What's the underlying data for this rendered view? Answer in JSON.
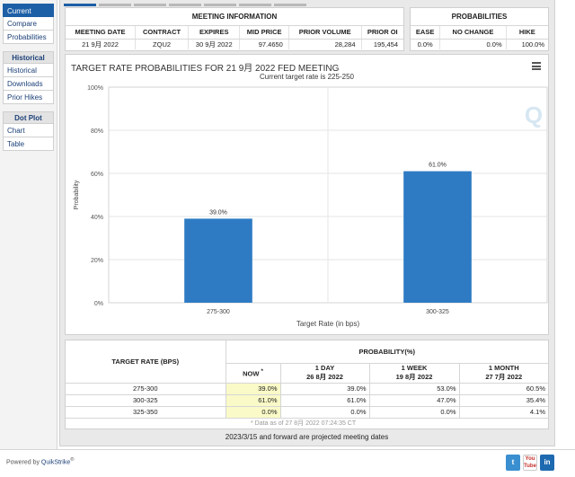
{
  "sidebar": {
    "items": [
      {
        "label": "Current",
        "active": true
      },
      {
        "label": "Compare"
      },
      {
        "label": "Probabilities"
      }
    ],
    "historical_head": "Historical",
    "historical_items": [
      {
        "label": "Historical"
      },
      {
        "label": "Downloads"
      },
      {
        "label": "Prior Hikes"
      }
    ],
    "dotplot_head": "Dot Plot",
    "dotplot_items": [
      {
        "label": "Chart"
      },
      {
        "label": "Table"
      }
    ]
  },
  "meeting_info": {
    "title": "MEETING INFORMATION",
    "headers": [
      "MEETING DATE",
      "CONTRACT",
      "EXPIRES",
      "MID PRICE",
      "PRIOR VOLUME",
      "PRIOR OI"
    ],
    "row": [
      "21 9月 2022",
      "ZQU2",
      "30 9月 2022",
      "97.4650",
      "28,284",
      "195,454"
    ]
  },
  "probabilities": {
    "title": "PROBABILITIES",
    "headers": [
      "EASE",
      "NO CHANGE",
      "HIKE"
    ],
    "row": [
      "0.0%",
      "0.0%",
      "100.0%"
    ]
  },
  "chart_data": {
    "type": "bar",
    "title": "TARGET RATE PROBABILITIES FOR 21 9月 2022 FED MEETING",
    "subtitle": "Current target rate is 225-250",
    "categories": [
      "275-300",
      "300-325"
    ],
    "values": [
      39.0,
      61.0
    ],
    "data_labels": [
      "39.0%",
      "61.0%"
    ],
    "xlabel": "Target Rate (in bps)",
    "ylabel": "Probability",
    "ylim": [
      0,
      100
    ],
    "yticks": [
      "0%",
      "20%",
      "40%",
      "60%",
      "80%",
      "100%"
    ],
    "grid": true,
    "bar_color": "#2e7bc4",
    "watermark": "Q"
  },
  "prob_table": {
    "rate_header": "TARGET RATE (BPS)",
    "prob_header": "PROBABILITY(%)",
    "col_now": "NOW",
    "col_now_mark": "*",
    "cols": [
      {
        "top": "1 DAY",
        "bottom": "26 8月 2022"
      },
      {
        "top": "1 WEEK",
        "bottom": "19 8月 2022"
      },
      {
        "top": "1 MONTH",
        "bottom": "27 7月 2022"
      }
    ],
    "rows": [
      {
        "rate": "275-300",
        "now": "39.0%",
        "d1": "39.0%",
        "w1": "53.0%",
        "m1": "60.5%"
      },
      {
        "rate": "300-325",
        "now": "61.0%",
        "d1": "61.0%",
        "w1": "47.0%",
        "m1": "35.4%"
      },
      {
        "rate": "325-350",
        "now": "0.0%",
        "d1": "0.0%",
        "w1": "0.0%",
        "m1": "4.1%"
      }
    ],
    "asof": "* Data as of 27 8月 2022 07:24:35 CT"
  },
  "projected_note": "2023/3/15 and forward are projected meeting dates",
  "footer": {
    "powered_by": "Powered by",
    "brand": "QuikStrike",
    "brand_mark": "®",
    "twitter": "t",
    "youtube": "You Tube",
    "linkedin": "in"
  }
}
